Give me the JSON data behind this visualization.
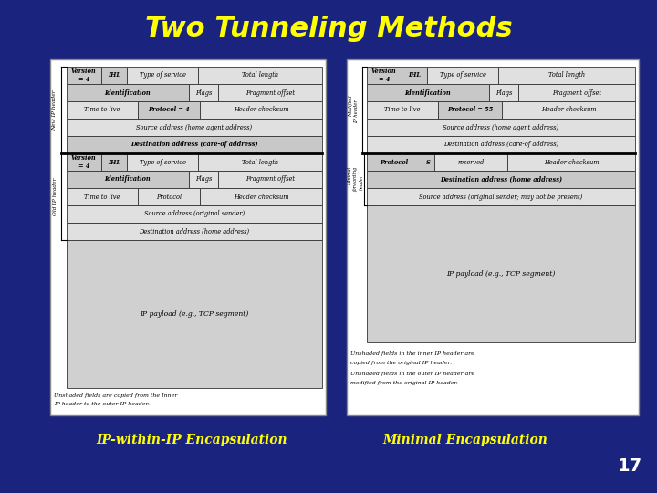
{
  "title": "Two Tunneling Methods",
  "title_color": "#FFFF00",
  "bg_color": "#1a237e",
  "label_left": "IP-within-IP Encapsulation",
  "label_right": "Minimal Encapsulation",
  "page_num": "17",
  "label_color": "#FFFF00",
  "text_color": "#FFFFFF",
  "shade_dark": "#c8c8c8",
  "shade_light": "#e0e0e0",
  "shade_payload": "#d0d0d0"
}
